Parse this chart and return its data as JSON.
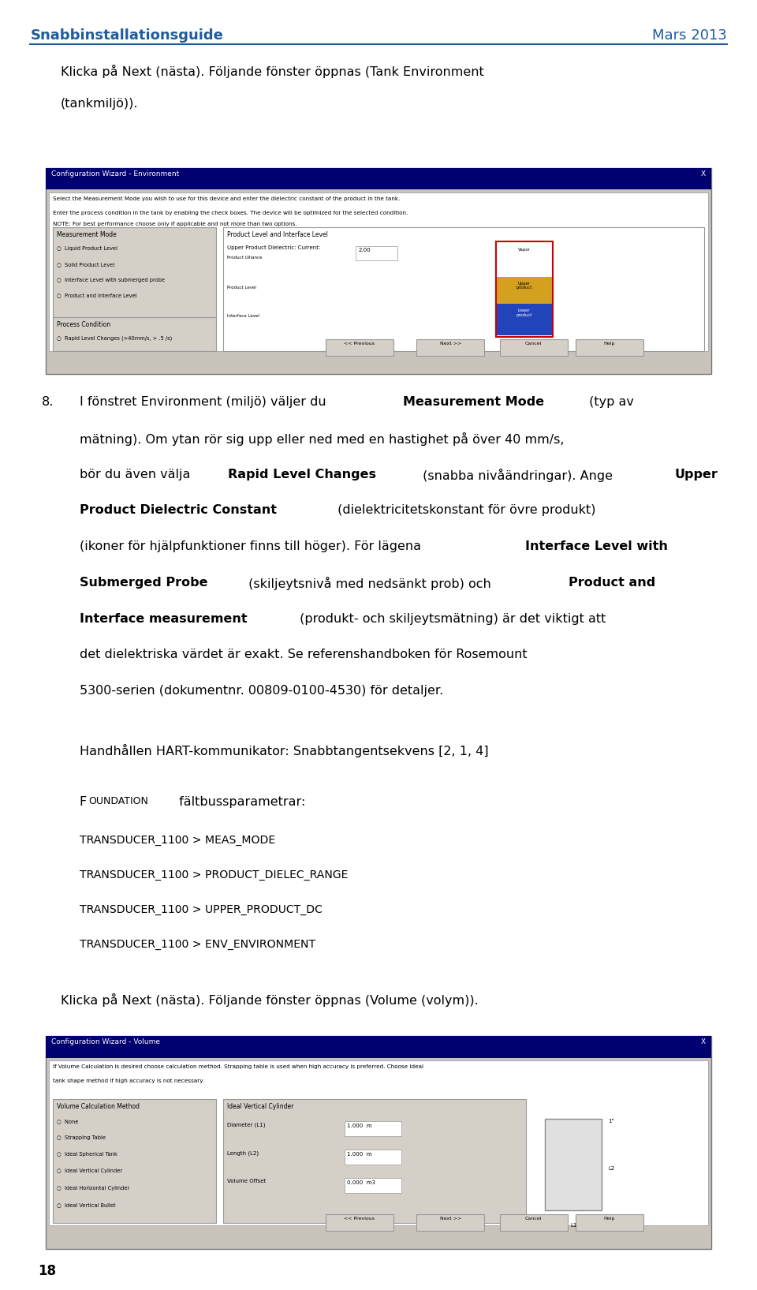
{
  "header_left": "Snabbinstallationsguide",
  "header_right": "Mars 2013",
  "header_color": "#1F5C9E",
  "bg_color": "#ffffff",
  "text_color": "#000000",
  "page_number": "18",
  "para1_line1": "Klicka på Next (nästa). Följande fönster öppnas (Tank Environment",
  "para1_line2": "(tankmiljö)).",
  "hart_line": "Handhållen HART-kommunikator: Snabbtangentsekvens [2, 1, 4]",
  "foundation_header": "FOUNDATION fältbussparametrar:",
  "fb_lines": [
    "TRANSDUCER_1100 > MEAS_MODE",
    "TRANSDUCER_1100 > PRODUCT_DIELEC_RANGE",
    "TRANSDUCER_1100 > UPPER_PRODUCT_DC",
    "TRANSDUCER_1100 > ENV_ENVIRONMENT"
  ],
  "para_last": "Klicka på Next (nästa). Följande fönster öppnas (Volume (volym)).",
  "font_size_header": 13,
  "font_size_body": 11.5,
  "font_size_page_num": 12,
  "wizard1_title": "Configuration Wizard - Environment",
  "wizard2_title": "Configuration Wizard - Volume",
  "wizard1_desc1": "Select the Measurement Mode you wish to use for this device and enter the dielectric constant of the product in the tank.",
  "wizard1_desc2": "Enter the process condition in the tank by enabling the check boxes. The device will be optimized for the selected condition.",
  "wizard1_desc3": "NOTE: For best performance choose only if applicable and not more than two options.",
  "mm_options": [
    "Liquid Product Level",
    "Solid Product Level",
    "Interface Level with submerged probe",
    "Product and Interface Level"
  ],
  "pc_options": [
    "Rapid Level Changes (>40mm/s, > .5 /s)"
  ],
  "vol_desc1": "If Volume Calculation is desired choose calculation method. Strapping table is used when high accuracy is preferred. Choose ideal",
  "vol_desc2": "tank shape method if high accuracy is not necessary.",
  "vol_options": [
    "None",
    "Strapping Table",
    "Ideal Spherical Tank",
    "Ideal Vertical Cylinder",
    "Ideal Horizontal Cylinder",
    "Ideal Vertical Bullet"
  ],
  "vol_params": [
    [
      "Diameter (L1)",
      "1.000  m"
    ],
    [
      "Length (L2)",
      "1.000  m"
    ],
    [
      "Volume Offset",
      "0.000  m3"
    ]
  ],
  "btn_labels": [
    "<< Previous",
    "Next >>",
    "Cancel",
    "Help"
  ],
  "item8_parts": [
    {
      "text": "I fönstret Environment (miljö) väljer du ",
      "bold": false
    },
    {
      "text": "Measurement Mode",
      "bold": true
    },
    {
      "text": " (typ av mätning). Om ytan rör sig upp eller ned med en hastighet på över 40 mm/s, bör du även välja ",
      "bold": false
    },
    {
      "text": "Rapid Level Changes",
      "bold": true
    },
    {
      "text": " (snabba nivåändringar). Ange ",
      "bold": false
    },
    {
      "text": "Upper Product Dielectric Constant",
      "bold": true
    },
    {
      "text": " (dielektricitetskonstant för övre produkt) (ikoner för hjälpfunktioner finns till höger). För lägena ",
      "bold": false
    },
    {
      "text": "Interface Level with Submerged Probe",
      "bold": true
    },
    {
      "text": " (skiljeytsnivå med nedsänkt prob) och ",
      "bold": false
    },
    {
      "text": "Product and Interface measurement",
      "bold": true
    },
    {
      "text": " (produkt- och skiljeytsmätning) är det viktigt att det dielektriska värdet är exakt. Se referenshandboken för Rosemount 5300-serien (dokumentnr. 00809-0100-4530) för detaljer.",
      "bold": false
    }
  ]
}
